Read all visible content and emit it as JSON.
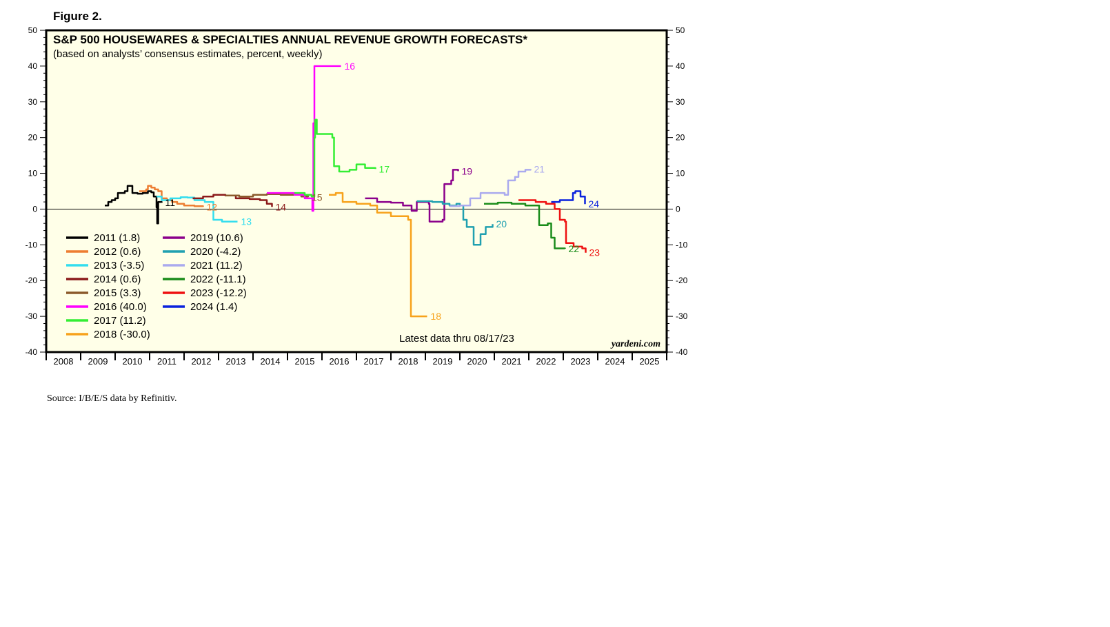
{
  "figure_label": "Figure 2.",
  "source": "Source: I/B/E/S data by Refinitiv.",
  "chart_data": {
    "type": "line",
    "title": "S&P 500 HOUSEWARES & SPECIALTIES ANNUAL REVENUE GROWTH FORECASTS*",
    "subtitle": "(based on analysts’ consensus estimates, percent, weekly)",
    "annotation": "Latest data thru 08/17/23",
    "brand": "yardeni.com",
    "xlabel": "",
    "ylabel": "",
    "x_range": [
      2008.0,
      2026.0
    ],
    "ylim": [
      -40,
      50
    ],
    "y_ticks": [
      -40,
      -30,
      -20,
      -10,
      0,
      10,
      20,
      30,
      40,
      50
    ],
    "x_tick_labels": [
      "2008",
      "2009",
      "2010",
      "2011",
      "2012",
      "2013",
      "2014",
      "2015",
      "2016",
      "2017",
      "2018",
      "2019",
      "2020",
      "2021",
      "2022",
      "2023",
      "2024",
      "2025"
    ],
    "grid": false,
    "zero_line": true,
    "legend_placement": "bottom-left",
    "series": [
      {
        "name": "2011 (1.8)",
        "end_label": "11",
        "color": "#000000",
        "points": [
          [
            2009.7,
            1.0
          ],
          [
            2009.8,
            2.0
          ],
          [
            2009.9,
            2.5
          ],
          [
            2010.0,
            3.0
          ],
          [
            2010.08,
            4.5
          ],
          [
            2010.2,
            4.5
          ],
          [
            2010.28,
            5.0
          ],
          [
            2010.36,
            6.5
          ],
          [
            2010.45,
            6.5
          ],
          [
            2010.5,
            4.5
          ],
          [
            2010.65,
            4.3
          ],
          [
            2010.8,
            4.5
          ],
          [
            2010.95,
            5.0
          ],
          [
            2011.05,
            4.7
          ],
          [
            2011.12,
            3.5
          ],
          [
            2011.2,
            0.5
          ],
          [
            2011.22,
            -4.0
          ],
          [
            2011.25,
            2.0
          ],
          [
            2011.35,
            1.8
          ]
        ]
      },
      {
        "name": "2012 (0.6)",
        "end_label": "12",
        "color": "#ed7d31",
        "points": [
          [
            2010.7,
            5.0
          ],
          [
            2010.9,
            5.5
          ],
          [
            2010.95,
            6.5
          ],
          [
            2011.05,
            6.0
          ],
          [
            2011.15,
            5.5
          ],
          [
            2011.25,
            5.0
          ],
          [
            2011.35,
            3.0
          ],
          [
            2011.5,
            2.5
          ],
          [
            2011.65,
            2.0
          ],
          [
            2011.8,
            1.5
          ],
          [
            2012.0,
            1.0
          ],
          [
            2012.3,
            0.8
          ],
          [
            2012.55,
            0.6
          ]
        ]
      },
      {
        "name": "2013 (-3.5)",
        "end_label": "13",
        "color": "#33ddee",
        "points": [
          [
            2011.2,
            3.5
          ],
          [
            2011.35,
            2.5
          ],
          [
            2011.6,
            3.0
          ],
          [
            2011.9,
            3.3
          ],
          [
            2012.1,
            3.2
          ],
          [
            2012.3,
            2.5
          ],
          [
            2012.6,
            2.0
          ],
          [
            2012.8,
            2.0
          ],
          [
            2012.85,
            -3.0
          ],
          [
            2013.1,
            -3.5
          ],
          [
            2013.55,
            -3.5
          ]
        ]
      },
      {
        "name": "2014 (0.6)",
        "end_label": "14",
        "color": "#8b1a1a",
        "points": [
          [
            2012.25,
            3.0
          ],
          [
            2012.55,
            3.5
          ],
          [
            2012.85,
            4.0
          ],
          [
            2013.2,
            3.8
          ],
          [
            2013.5,
            3.0
          ],
          [
            2013.9,
            2.8
          ],
          [
            2014.2,
            2.5
          ],
          [
            2014.4,
            1.5
          ],
          [
            2014.55,
            0.6
          ]
        ]
      },
      {
        "name": "2015 (3.3)",
        "end_label": "15",
        "color": "#8b5a2b",
        "points": [
          [
            2013.2,
            3.8
          ],
          [
            2013.6,
            3.5
          ],
          [
            2014.0,
            4.0
          ],
          [
            2014.4,
            4.2
          ],
          [
            2014.8,
            4.0
          ],
          [
            2015.1,
            4.0
          ],
          [
            2015.4,
            3.5
          ],
          [
            2015.6,
            3.3
          ]
        ]
      },
      {
        "name": "2016 (40.0)",
        "end_label": "16",
        "color": "#ff00ff",
        "points": [
          [
            2014.4,
            4.5
          ],
          [
            2014.8,
            4.5
          ],
          [
            2015.2,
            4.0
          ],
          [
            2015.5,
            3.0
          ],
          [
            2015.72,
            -0.5
          ],
          [
            2015.75,
            24.0
          ],
          [
            2015.78,
            40.0
          ],
          [
            2016.05,
            40.0
          ],
          [
            2016.55,
            40.0
          ]
        ]
      },
      {
        "name": "2017 (11.2)",
        "end_label": "17",
        "color": "#33ee33",
        "points": [
          [
            2015.2,
            4.5
          ],
          [
            2015.5,
            4.0
          ],
          [
            2015.7,
            3.5
          ],
          [
            2015.78,
            20.0
          ],
          [
            2015.8,
            25.0
          ],
          [
            2015.85,
            21.0
          ],
          [
            2016.1,
            21.0
          ],
          [
            2016.3,
            20.0
          ],
          [
            2016.35,
            12.0
          ],
          [
            2016.5,
            10.5
          ],
          [
            2016.8,
            11.0
          ],
          [
            2017.0,
            12.5
          ],
          [
            2017.25,
            11.5
          ],
          [
            2017.55,
            11.2
          ]
        ]
      },
      {
        "name": "2018 (-30.0)",
        "end_label": "18",
        "color": "#f7a21b",
        "points": [
          [
            2016.2,
            4.0
          ],
          [
            2016.4,
            4.5
          ],
          [
            2016.6,
            2.0
          ],
          [
            2017.0,
            1.5
          ],
          [
            2017.4,
            1.0
          ],
          [
            2017.6,
            -1.0
          ],
          [
            2018.0,
            -2.0
          ],
          [
            2018.5,
            -3.0
          ],
          [
            2018.58,
            -30.0
          ],
          [
            2019.05,
            -30.0
          ]
        ]
      },
      {
        "name": "2019 (10.6)",
        "end_label": "19",
        "color": "#8b008b",
        "points": [
          [
            2017.25,
            3.0
          ],
          [
            2017.6,
            2.0
          ],
          [
            2018.0,
            1.8
          ],
          [
            2018.35,
            1.0
          ],
          [
            2018.6,
            -0.5
          ],
          [
            2018.75,
            2.0
          ],
          [
            2019.1,
            1.5
          ],
          [
            2019.12,
            -3.5
          ],
          [
            2019.5,
            -3.0
          ],
          [
            2019.55,
            7.0
          ],
          [
            2019.75,
            8.0
          ],
          [
            2019.8,
            11.0
          ],
          [
            2019.95,
            10.6
          ]
        ]
      },
      {
        "name": "2020 (-4.2)",
        "end_label": "20",
        "color": "#20a0b0",
        "points": [
          [
            2018.75,
            2.2
          ],
          [
            2019.2,
            2.0
          ],
          [
            2019.5,
            1.5
          ],
          [
            2019.7,
            1.0
          ],
          [
            2019.9,
            1.5
          ],
          [
            2020.0,
            1.0
          ],
          [
            2020.1,
            -3.0
          ],
          [
            2020.2,
            -5.0
          ],
          [
            2020.4,
            -10.0
          ],
          [
            2020.6,
            -7.0
          ],
          [
            2020.75,
            -5.0
          ],
          [
            2020.95,
            -4.2
          ]
        ]
      },
      {
        "name": "2021 (11.2)",
        "end_label": "21",
        "color": "#aaaaee",
        "points": [
          [
            2019.7,
            0.8
          ],
          [
            2020.0,
            1.0
          ],
          [
            2020.3,
            3.0
          ],
          [
            2020.6,
            4.5
          ],
          [
            2020.9,
            4.5
          ],
          [
            2021.1,
            4.5
          ],
          [
            2021.3,
            4.0
          ],
          [
            2021.4,
            8.0
          ],
          [
            2021.6,
            9.0
          ],
          [
            2021.7,
            10.5
          ],
          [
            2021.9,
            11.0
          ],
          [
            2022.05,
            11.2
          ]
        ]
      },
      {
        "name": "2022 (-11.1)",
        "end_label": "22",
        "color": "#1a8c1a",
        "points": [
          [
            2020.7,
            1.5
          ],
          [
            2021.1,
            1.8
          ],
          [
            2021.5,
            1.5
          ],
          [
            2021.9,
            1.0
          ],
          [
            2022.2,
            1.0
          ],
          [
            2022.3,
            -4.5
          ],
          [
            2022.55,
            -4.0
          ],
          [
            2022.65,
            -8.0
          ],
          [
            2022.75,
            -11.0
          ],
          [
            2023.05,
            -11.1
          ]
        ]
      },
      {
        "name": "2023 (-12.2)",
        "end_label": "23",
        "color": "#ee1111",
        "points": [
          [
            2021.7,
            2.5
          ],
          [
            2022.0,
            2.5
          ],
          [
            2022.2,
            2.0
          ],
          [
            2022.5,
            1.5
          ],
          [
            2022.75,
            0.0
          ],
          [
            2022.9,
            -3.0
          ],
          [
            2023.05,
            -3.5
          ],
          [
            2023.08,
            -9.5
          ],
          [
            2023.3,
            -10.5
          ],
          [
            2023.55,
            -11.0
          ],
          [
            2023.65,
            -12.2
          ]
        ]
      },
      {
        "name": "2024 (1.4)",
        "end_label": "24",
        "color": "#0a22dd",
        "points": [
          [
            2022.65,
            2.0
          ],
          [
            2022.9,
            2.5
          ],
          [
            2023.15,
            2.5
          ],
          [
            2023.28,
            4.5
          ],
          [
            2023.35,
            5.0
          ],
          [
            2023.5,
            3.5
          ],
          [
            2023.63,
            1.4
          ]
        ]
      }
    ]
  }
}
